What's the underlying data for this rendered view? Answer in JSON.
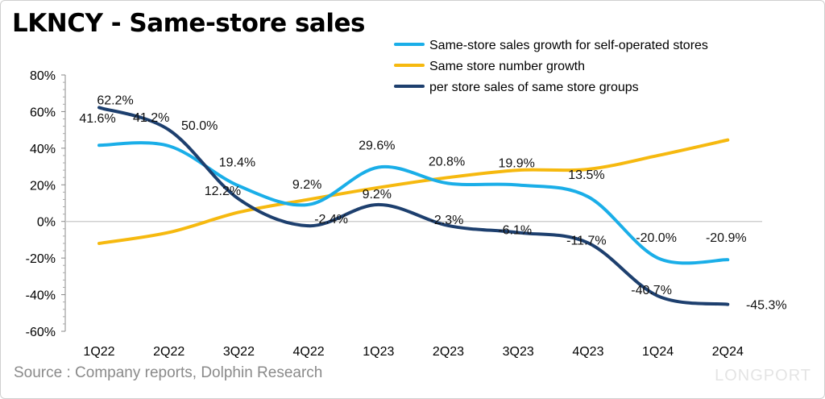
{
  "title": "LKNCY - Same-store sales",
  "source": "Source : Company reports, Dolphin Research",
  "logo_text": "LONGPORT",
  "chart_data": {
    "type": "line",
    "title": "LKNCY - Same-store sales",
    "categories": [
      "1Q22",
      "2Q22",
      "3Q22",
      "4Q22",
      "1Q23",
      "2Q23",
      "3Q23",
      "4Q23",
      "1Q24",
      "2Q24"
    ],
    "ylim": [
      -60,
      80
    ],
    "yticks": [
      -60,
      -40,
      -20,
      0,
      20,
      40,
      60,
      80
    ],
    "ytick_labels": [
      "-60%",
      "-40%",
      "-20%",
      "0%",
      "20%",
      "40%",
      "60%",
      "80%"
    ],
    "grid": "zero line only",
    "legend_position": "top-right",
    "series": [
      {
        "name": "Same-store sales growth for self-operated stores",
        "color": "#1aaee8",
        "values": [
          41.6,
          41.2,
          19.4,
          9.2,
          29.6,
          20.8,
          19.9,
          13.5,
          -20.0,
          -20.9
        ],
        "labels": [
          "41.6%",
          "41.2%",
          "19.4%",
          "9.2%",
          "29.6%",
          "20.8%",
          "19.9%",
          "13.5%",
          "-20.0%",
          "-20.9%"
        ]
      },
      {
        "name": "Same store number growth",
        "color": "#f6b90f",
        "values": [
          -12,
          -6,
          5,
          12,
          18.5,
          24,
          28,
          28.5,
          36,
          44.5
        ],
        "labels": []
      },
      {
        "name": "per store sales of same store groups",
        "color": "#1d3f6e",
        "values": [
          62.2,
          50.0,
          12.2,
          -2.4,
          9.2,
          -2.3,
          -6.1,
          -11.7,
          -40.7,
          -45.3
        ],
        "labels": [
          "62.2%",
          "50.0%",
          "12.2%",
          "-2.4%",
          "9.2%",
          "-2.3%",
          "-6.1%",
          "-11.7%",
          "-40.7%",
          "-45.3%"
        ]
      }
    ]
  }
}
